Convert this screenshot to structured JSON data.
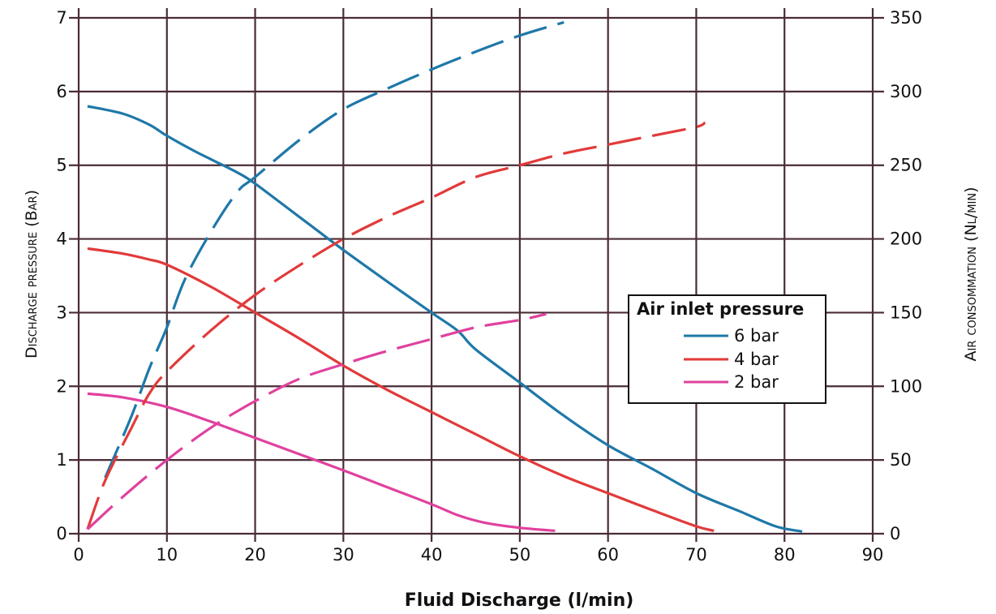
{
  "chart_data": {
    "type": "line",
    "xlabel": "Fluid Discharge (l/min)",
    "ylabel_left": "Discharge pressure (Bar)",
    "ylabel_right": "Air consommation (Nl/min)",
    "xlim": [
      0,
      90
    ],
    "ylim_left": [
      0,
      7
    ],
    "ylim_right": [
      0,
      350
    ],
    "x_ticks": [
      "0",
      "10",
      "20",
      "30",
      "40",
      "50",
      "60",
      "70",
      "80",
      "90"
    ],
    "y_left_ticks": [
      "0",
      "1",
      "2",
      "3",
      "4",
      "5",
      "6",
      "7"
    ],
    "y_right_ticks": [
      "0",
      "50",
      "100",
      "150",
      "200",
      "250",
      "300",
      "350"
    ],
    "grid": true,
    "legend": {
      "title": "Air inlet pressure",
      "placement": "center-right",
      "entries": [
        "6 bar",
        "4 bar",
        "2 bar"
      ]
    },
    "series": [
      {
        "name": "6 bar",
        "axis": "left",
        "style": "solid",
        "color": "#1f78a8",
        "points": [
          [
            1,
            5.8
          ],
          [
            5,
            5.7
          ],
          [
            8,
            5.55
          ],
          [
            10,
            5.4
          ],
          [
            13,
            5.2
          ],
          [
            15,
            5.08
          ],
          [
            18,
            4.9
          ],
          [
            20,
            4.75
          ],
          [
            25,
            4.3
          ],
          [
            30,
            3.85
          ],
          [
            35,
            3.42
          ],
          [
            40,
            3.0
          ],
          [
            43,
            2.75
          ],
          [
            45,
            2.5
          ],
          [
            50,
            2.05
          ],
          [
            55,
            1.6
          ],
          [
            60,
            1.2
          ],
          [
            65,
            0.88
          ],
          [
            70,
            0.55
          ],
          [
            75,
            0.3
          ],
          [
            79,
            0.1
          ],
          [
            82,
            0.03
          ]
        ]
      },
      {
        "name": "4 bar",
        "axis": "left",
        "style": "solid",
        "color": "#e23a3a",
        "points": [
          [
            1,
            3.87
          ],
          [
            5,
            3.8
          ],
          [
            8,
            3.72
          ],
          [
            10,
            3.65
          ],
          [
            15,
            3.35
          ],
          [
            20,
            3.0
          ],
          [
            25,
            2.65
          ],
          [
            30,
            2.28
          ],
          [
            35,
            1.95
          ],
          [
            40,
            1.65
          ],
          [
            45,
            1.35
          ],
          [
            50,
            1.05
          ],
          [
            55,
            0.78
          ],
          [
            60,
            0.55
          ],
          [
            65,
            0.32
          ],
          [
            70,
            0.1
          ],
          [
            72,
            0.04
          ]
        ]
      },
      {
        "name": "2 bar",
        "axis": "left",
        "style": "solid",
        "color": "#e0419e",
        "points": [
          [
            1,
            1.9
          ],
          [
            5,
            1.85
          ],
          [
            10,
            1.72
          ],
          [
            15,
            1.52
          ],
          [
            20,
            1.3
          ],
          [
            25,
            1.08
          ],
          [
            30,
            0.86
          ],
          [
            35,
            0.63
          ],
          [
            40,
            0.4
          ],
          [
            43,
            0.25
          ],
          [
            46,
            0.15
          ],
          [
            50,
            0.08
          ],
          [
            54,
            0.04
          ]
        ]
      },
      {
        "name": "6 bar",
        "axis": "right",
        "style": "dashed",
        "color": "#1f78a8",
        "points": [
          [
            3,
            38
          ],
          [
            6,
            80
          ],
          [
            8,
            112
          ],
          [
            10,
            140
          ],
          [
            12,
            172
          ],
          [
            15,
            205
          ],
          [
            18,
            232
          ],
          [
            20,
            242
          ],
          [
            25,
            267
          ],
          [
            30,
            288
          ],
          [
            35,
            302
          ],
          [
            40,
            315
          ],
          [
            45,
            327
          ],
          [
            50,
            338
          ],
          [
            55,
            347
          ]
        ]
      },
      {
        "name": "4 bar",
        "axis": "right",
        "style": "dashed",
        "color": "#e23a3a",
        "points": [
          [
            1,
            3
          ],
          [
            3,
            36
          ],
          [
            6,
            72
          ],
          [
            8,
            95
          ],
          [
            10,
            110
          ],
          [
            15,
            138
          ],
          [
            20,
            162
          ],
          [
            25,
            182
          ],
          [
            30,
            200
          ],
          [
            35,
            215
          ],
          [
            40,
            228
          ],
          [
            45,
            242
          ],
          [
            50,
            250
          ],
          [
            55,
            258
          ],
          [
            60,
            264
          ],
          [
            65,
            270
          ],
          [
            70,
            276
          ],
          [
            71,
            279
          ]
        ]
      },
      {
        "name": "2 bar",
        "axis": "right",
        "style": "dashed",
        "color": "#e0419e",
        "points": [
          [
            1,
            3
          ],
          [
            5,
            25
          ],
          [
            10,
            50
          ],
          [
            15,
            72
          ],
          [
            20,
            90
          ],
          [
            25,
            105
          ],
          [
            30,
            115
          ],
          [
            35,
            124
          ],
          [
            40,
            132
          ],
          [
            45,
            140
          ],
          [
            50,
            145
          ],
          [
            53,
            149
          ]
        ]
      }
    ]
  }
}
